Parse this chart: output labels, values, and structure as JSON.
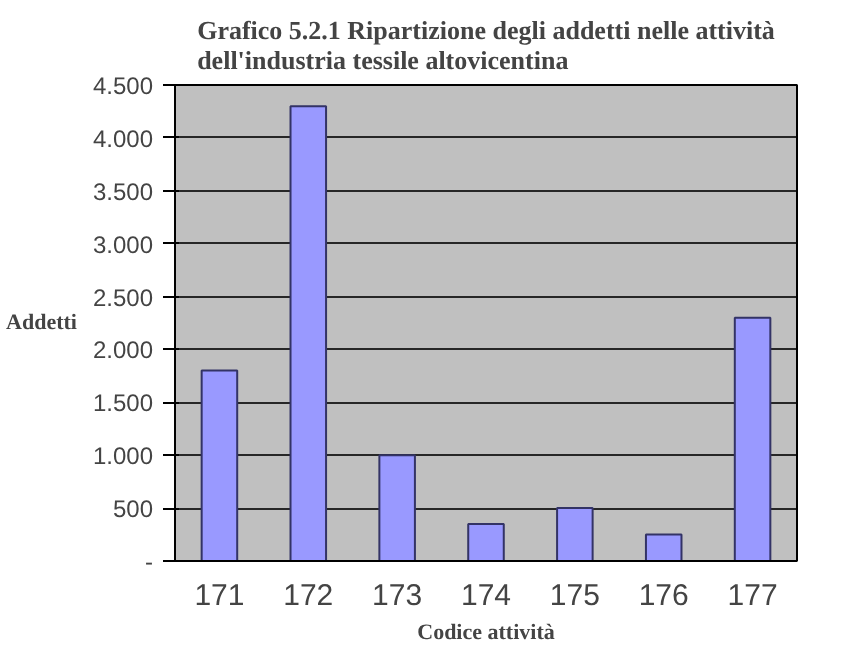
{
  "chart_data": {
    "type": "bar",
    "title": "Grafico 5.2.1 Ripartizione degli addetti nelle attività dell'industria tessile altovicentina",
    "xlabel": "Codice attività",
    "ylabel": "Addetti",
    "categories": [
      "171",
      "172",
      "173",
      "174",
      "175",
      "176",
      "177"
    ],
    "values": [
      1800,
      4300,
      1000,
      350,
      500,
      250,
      2300
    ],
    "color": "#9999ff",
    "ylim": [
      0,
      4500
    ],
    "yticks": [
      {
        "value": 0,
        "label": "-"
      },
      {
        "value": 500,
        "label": "500"
      },
      {
        "value": 1000,
        "label": "1.000"
      },
      {
        "value": 1500,
        "label": "1.500"
      },
      {
        "value": 2000,
        "label": "2.000"
      },
      {
        "value": 2500,
        "label": "2.500"
      },
      {
        "value": 3000,
        "label": "3.000"
      },
      {
        "value": 3500,
        "label": "3.500"
      },
      {
        "value": 4000,
        "label": "4.000"
      },
      {
        "value": 4500,
        "label": "4.500"
      }
    ],
    "grid": "y"
  }
}
